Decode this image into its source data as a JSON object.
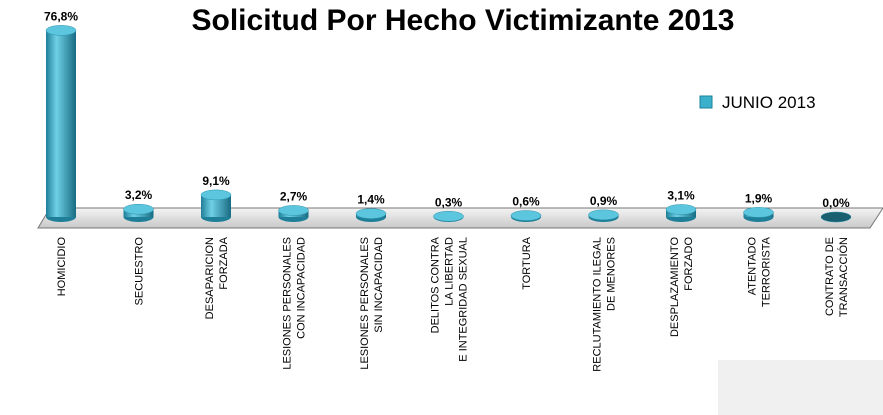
{
  "chart_data": {
    "type": "bar3d",
    "title": "Solicitud Por Hecho Victimizante 2013",
    "categories": [
      [
        "HOMICIDIO"
      ],
      [
        "SECUESTRO"
      ],
      [
        "DESAPARICION",
        "FORZADA"
      ],
      [
        "LESIONES PERSONALES",
        "CON INCAPACIDAD"
      ],
      [
        "LESIONES PERSONALES",
        "SIN INCAPACIDAD"
      ],
      [
        "DELITOS CONTRA",
        "LA LIBERTAD",
        "E INTEGRIDAD SEXUAL"
      ],
      [
        "TORTURA"
      ],
      [
        "RECLUTAMIENTO ILEGAL",
        "DE MENORES"
      ],
      [
        "DESPLAZAMIENTO",
        "FORZADO"
      ],
      [
        "ATENTADO",
        "TERRORISTA"
      ],
      [
        "CONTRATO DE",
        "TRANSACCIÓN"
      ]
    ],
    "series": [
      {
        "name": "JUNIO 2013",
        "color": "#3ab0cc",
        "values": [
          76.8,
          3.2,
          9.1,
          2.7,
          1.4,
          0.3,
          0.6,
          0.9,
          3.1,
          1.9,
          0.0
        ],
        "value_labels": [
          "76,8%",
          "3,2%",
          "9,1%",
          "2,7%",
          "1,4%",
          "0,3%",
          "0,6%",
          "0,9%",
          "3,1%",
          "1,9%",
          "0,0%"
        ]
      }
    ],
    "legend": "right"
  }
}
